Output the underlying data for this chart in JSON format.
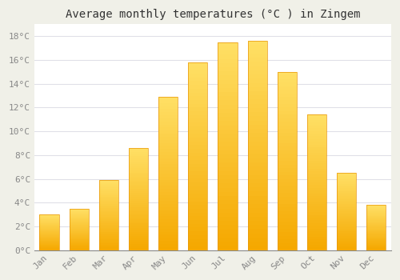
{
  "title": "Average monthly temperatures (°C ) in Zingem",
  "months": [
    "Jan",
    "Feb",
    "Mar",
    "Apr",
    "May",
    "Jun",
    "Jul",
    "Aug",
    "Sep",
    "Oct",
    "Nov",
    "Dec"
  ],
  "values": [
    3.0,
    3.5,
    5.9,
    8.6,
    12.9,
    15.8,
    17.5,
    17.6,
    15.0,
    11.4,
    6.5,
    3.8
  ],
  "bar_color_bottom": "#F5A800",
  "bar_color_top": "#FFE066",
  "bar_edge_color": "#E8960A",
  "ylim": [
    0,
    19
  ],
  "yticks": [
    0,
    2,
    4,
    6,
    8,
    10,
    12,
    14,
    16,
    18
  ],
  "ytick_labels": [
    "0°C",
    "2°C",
    "4°C",
    "6°C",
    "8°C",
    "10°C",
    "12°C",
    "14°C",
    "16°C",
    "18°C"
  ],
  "background_color": "#ffffff",
  "outer_background": "#f0f0e8",
  "grid_color": "#e0e0e8",
  "title_fontsize": 10,
  "tick_fontsize": 8,
  "bar_width": 0.65
}
